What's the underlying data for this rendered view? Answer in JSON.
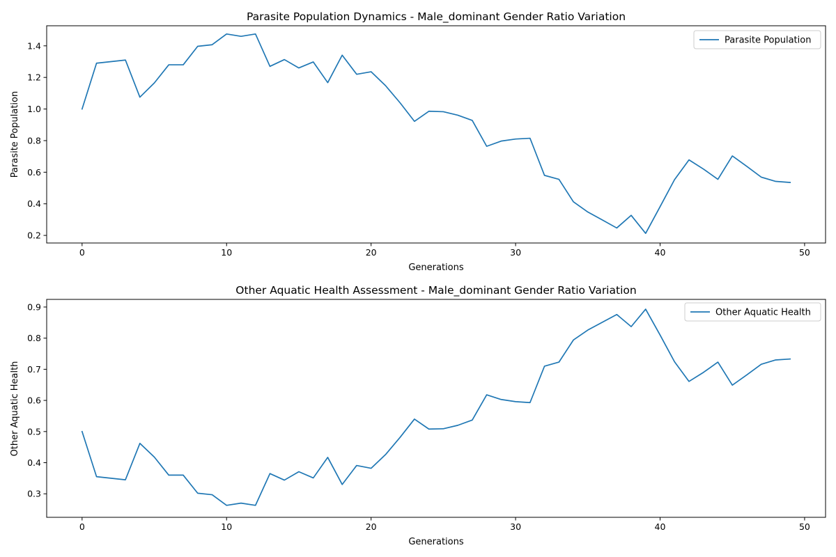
{
  "chart_data": [
    {
      "type": "line",
      "title": "Parasite Population Dynamics - Male_dominant Gender Ratio Variation",
      "xlabel": "Generations",
      "ylabel": "Parasite Population",
      "xlim": [
        -2.45,
        51.45
      ],
      "ylim": [
        0.152,
        1.527
      ],
      "xticks": [
        0,
        10,
        20,
        30,
        40,
        50
      ],
      "yticks": [
        0.2,
        0.4,
        0.6,
        0.8,
        1.0,
        1.2,
        1.4
      ],
      "ytick_decimals": 1,
      "grid": false,
      "legend_position": "top-right",
      "series": [
        {
          "name": "Parasite Population",
          "color": "#1f77b4",
          "x": [
            0,
            1,
            2,
            3,
            4,
            5,
            6,
            7,
            8,
            9,
            10,
            11,
            12,
            13,
            14,
            15,
            16,
            17,
            18,
            19,
            20,
            21,
            22,
            23,
            24,
            25,
            26,
            27,
            28,
            29,
            30,
            31,
            32,
            33,
            34,
            35,
            36,
            37,
            38,
            39,
            40,
            41,
            42,
            43,
            44,
            45,
            46,
            47,
            48,
            49
          ],
          "y": [
            1.0,
            1.29,
            1.3,
            1.31,
            1.075,
            1.165,
            1.28,
            1.28,
            1.397,
            1.407,
            1.475,
            1.46,
            1.475,
            1.27,
            1.313,
            1.26,
            1.298,
            1.167,
            1.341,
            1.22,
            1.236,
            1.148,
            1.04,
            0.922,
            0.986,
            0.983,
            0.961,
            0.928,
            0.764,
            0.797,
            0.81,
            0.815,
            0.58,
            0.555,
            0.413,
            0.348,
            0.298,
            0.247,
            0.327,
            0.213,
            0.382,
            0.553,
            0.678,
            0.62,
            0.555,
            0.703,
            0.637,
            0.569,
            0.542,
            0.535
          ]
        }
      ]
    },
    {
      "type": "line",
      "title": "Other Aquatic Health Assessment - Male_dominant Gender Ratio Variation",
      "xlabel": "Generations",
      "ylabel": "Other Aquatic Health",
      "xlim": [
        -2.45,
        51.45
      ],
      "ylim": [
        0.2245,
        0.9245
      ],
      "xticks": [
        0,
        10,
        20,
        30,
        40,
        50
      ],
      "yticks": [
        0.3,
        0.4,
        0.5,
        0.6,
        0.7,
        0.8,
        0.9
      ],
      "ytick_decimals": 1,
      "grid": false,
      "legend_position": "top-right",
      "series": [
        {
          "name": "Other Aquatic Health",
          "color": "#1f77b4",
          "x": [
            0,
            1,
            2,
            3,
            4,
            5,
            6,
            7,
            8,
            9,
            10,
            11,
            12,
            13,
            14,
            15,
            16,
            17,
            18,
            19,
            20,
            21,
            22,
            23,
            24,
            25,
            26,
            27,
            28,
            29,
            30,
            31,
            32,
            33,
            34,
            35,
            36,
            37,
            38,
            39,
            40,
            41,
            42,
            43,
            44,
            45,
            46,
            47,
            48,
            49
          ],
          "y": [
            0.5,
            0.355,
            0.35,
            0.345,
            0.462,
            0.418,
            0.36,
            0.36,
            0.302,
            0.297,
            0.263,
            0.27,
            0.263,
            0.365,
            0.344,
            0.371,
            0.351,
            0.417,
            0.33,
            0.391,
            0.382,
            0.426,
            0.481,
            0.54,
            0.508,
            0.509,
            0.52,
            0.537,
            0.618,
            0.603,
            0.596,
            0.593,
            0.71,
            0.723,
            0.794,
            0.826,
            0.851,
            0.876,
            0.837,
            0.893,
            0.81,
            0.724,
            0.661,
            0.69,
            0.723,
            0.649,
            0.682,
            0.716,
            0.73,
            0.733
          ]
        }
      ]
    }
  ]
}
